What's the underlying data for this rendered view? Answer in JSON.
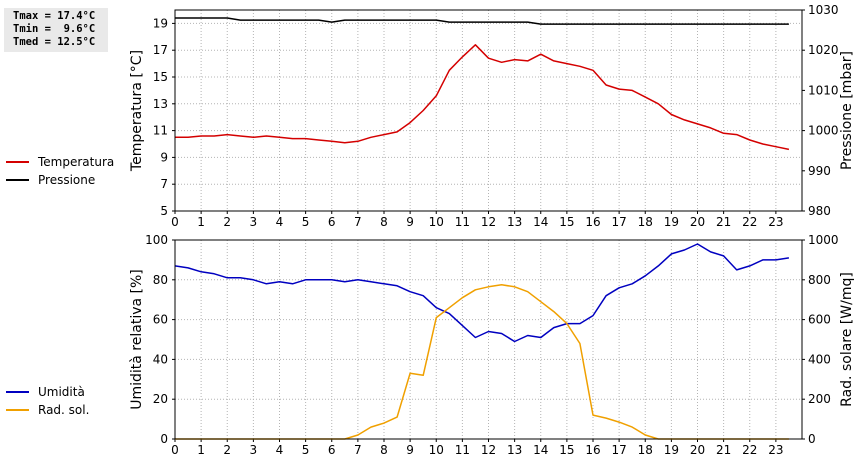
{
  "stats": {
    "tmax": "Tmax = 17.4°C",
    "tmin": "Tmin =  9.6°C",
    "tmed": "Tmed = 12.5°C"
  },
  "chart_data": [
    {
      "type": "line",
      "grid": true,
      "x_ticks": [
        "0",
        "1",
        "2",
        "3",
        "4",
        "5",
        "6",
        "7",
        "8",
        "9",
        "10",
        "11",
        "12",
        "13",
        "14",
        "15",
        "16",
        "17",
        "18",
        "19",
        "20",
        "21",
        "22",
        "23"
      ],
      "xlim": [
        0,
        24
      ],
      "ylabel": "Temperatura [°C]",
      "y_ticks": [
        "5",
        "7",
        "9",
        "11",
        "13",
        "15",
        "17",
        "19"
      ],
      "ylim": [
        5,
        20
      ],
      "y2label": "Pressione [mbar]",
      "y2_ticks": [
        "980",
        "990",
        "1000",
        "1010",
        "1020",
        "1030"
      ],
      "y2lim": [
        980,
        1030
      ],
      "legend_placement": "left",
      "series": [
        {
          "name": "Temperatura",
          "axis": "left",
          "color": "#d40000",
          "x": [
            0,
            0.5,
            1,
            1.5,
            2,
            2.5,
            3,
            3.5,
            4,
            4.5,
            5,
            5.5,
            6,
            6.5,
            7,
            7.5,
            8,
            8.5,
            9,
            9.5,
            10,
            10.5,
            11,
            11.5,
            12,
            12.5,
            13,
            13.5,
            14,
            14.5,
            15,
            15.5,
            16,
            16.5,
            17,
            17.5,
            18,
            18.5,
            19,
            19.5,
            20,
            20.5,
            21,
            21.5,
            22,
            22.5,
            23,
            23.5
          ],
          "values": [
            10.5,
            10.5,
            10.6,
            10.6,
            10.7,
            10.6,
            10.5,
            10.6,
            10.5,
            10.4,
            10.4,
            10.3,
            10.2,
            10.1,
            10.2,
            10.5,
            10.7,
            10.9,
            11.6,
            12.5,
            13.6,
            15.5,
            16.5,
            17.4,
            16.4,
            16.1,
            16.3,
            16.2,
            16.7,
            16.2,
            16.0,
            15.8,
            15.5,
            14.4,
            14.1,
            14.0,
            13.5,
            13.0,
            12.2,
            11.8,
            11.5,
            11.2,
            10.8,
            10.7,
            10.3,
            10.0,
            9.8,
            9.6
          ]
        },
        {
          "name": "Pressione",
          "axis": "right",
          "color": "#000000",
          "x": [
            0,
            0.5,
            1,
            1.5,
            2,
            2.5,
            3,
            3.5,
            4,
            4.5,
            5,
            5.5,
            6,
            6.5,
            7,
            7.5,
            8,
            8.5,
            9,
            9.5,
            10,
            10.5,
            11,
            11.5,
            12,
            12.5,
            13,
            13.5,
            14,
            14.5,
            15,
            15.5,
            16,
            16.5,
            17,
            17.5,
            18,
            18.5,
            19,
            19.5,
            20,
            20.5,
            21,
            21.5,
            22,
            22.5,
            23,
            23.5
          ],
          "values": [
            1028,
            1028,
            1028,
            1028,
            1028,
            1027.5,
            1027.5,
            1027.5,
            1027.5,
            1027.5,
            1027.5,
            1027.5,
            1027,
            1027.5,
            1027.5,
            1027.5,
            1027.5,
            1027.5,
            1027.5,
            1027.5,
            1027.5,
            1027,
            1027,
            1027,
            1027,
            1027,
            1027,
            1027,
            1026.5,
            1026.5,
            1026.5,
            1026.5,
            1026.5,
            1026.5,
            1026.5,
            1026.5,
            1026.5,
            1026.5,
            1026.5,
            1026.5,
            1026.5,
            1026.5,
            1026.5,
            1026.5,
            1026.5,
            1026.5,
            1026.5,
            1026.5
          ]
        }
      ]
    },
    {
      "type": "line",
      "grid": true,
      "x_ticks": [
        "0",
        "1",
        "2",
        "3",
        "4",
        "5",
        "6",
        "7",
        "8",
        "9",
        "10",
        "11",
        "12",
        "13",
        "14",
        "15",
        "16",
        "17",
        "18",
        "19",
        "20",
        "21",
        "22",
        "23"
      ],
      "xlim": [
        0,
        24
      ],
      "ylabel": "Umidità relativa [%]",
      "y_ticks": [
        "0",
        "20",
        "40",
        "60",
        "80",
        "100"
      ],
      "ylim": [
        0,
        100
      ],
      "y2label": "Rad. solare [W/mq]",
      "y2_ticks": [
        "0",
        "200",
        "400",
        "600",
        "800",
        "1000"
      ],
      "y2lim": [
        0,
        1000
      ],
      "legend_placement": "left",
      "series": [
        {
          "name": "Umidità",
          "axis": "left",
          "color": "#0000c0",
          "x": [
            0,
            0.5,
            1,
            1.5,
            2,
            2.5,
            3,
            3.5,
            4,
            4.5,
            5,
            5.5,
            6,
            6.5,
            7,
            7.5,
            8,
            8.5,
            9,
            9.5,
            10,
            10.5,
            11,
            11.5,
            12,
            12.5,
            13,
            13.5,
            14,
            14.5,
            15,
            15.5,
            16,
            16.5,
            17,
            17.5,
            18,
            18.5,
            19,
            19.5,
            20,
            20.5,
            21,
            21.5,
            22,
            22.5,
            23,
            23.5
          ],
          "values": [
            87,
            86,
            84,
            83,
            81,
            81,
            80,
            78,
            79,
            78,
            80,
            80,
            80,
            79,
            80,
            79,
            78,
            77,
            74,
            72,
            66,
            63,
            57,
            51,
            54,
            53,
            49,
            52,
            51,
            56,
            58,
            58,
            62,
            72,
            76,
            78,
            82,
            87,
            93,
            95,
            98,
            94,
            92,
            85,
            87,
            90,
            90,
            91
          ]
        },
        {
          "name": "Rad. sol.",
          "axis": "right",
          "color": "#f0a000",
          "x": [
            0,
            0.5,
            1,
            1.5,
            2,
            2.5,
            3,
            3.5,
            4,
            4.5,
            5,
            5.5,
            6,
            6.5,
            7,
            7.5,
            8,
            8.5,
            9,
            9.5,
            10,
            10.5,
            11,
            11.5,
            12,
            12.5,
            13,
            13.5,
            14,
            14.5,
            15,
            15.5,
            16,
            16.5,
            17,
            17.5,
            18,
            18.5,
            19,
            19.5,
            20,
            20.5,
            21,
            21.5,
            22,
            22.5,
            23,
            23.5
          ],
          "values": [
            0,
            0,
            0,
            0,
            0,
            0,
            0,
            0,
            0,
            0,
            0,
            0,
            0,
            0,
            20,
            60,
            80,
            110,
            330,
            320,
            610,
            660,
            710,
            750,
            765,
            775,
            765,
            740,
            690,
            640,
            580,
            480,
            120,
            105,
            85,
            60,
            20,
            0,
            0,
            0,
            0,
            0,
            0,
            0,
            0,
            0,
            0,
            0
          ]
        }
      ]
    }
  ]
}
